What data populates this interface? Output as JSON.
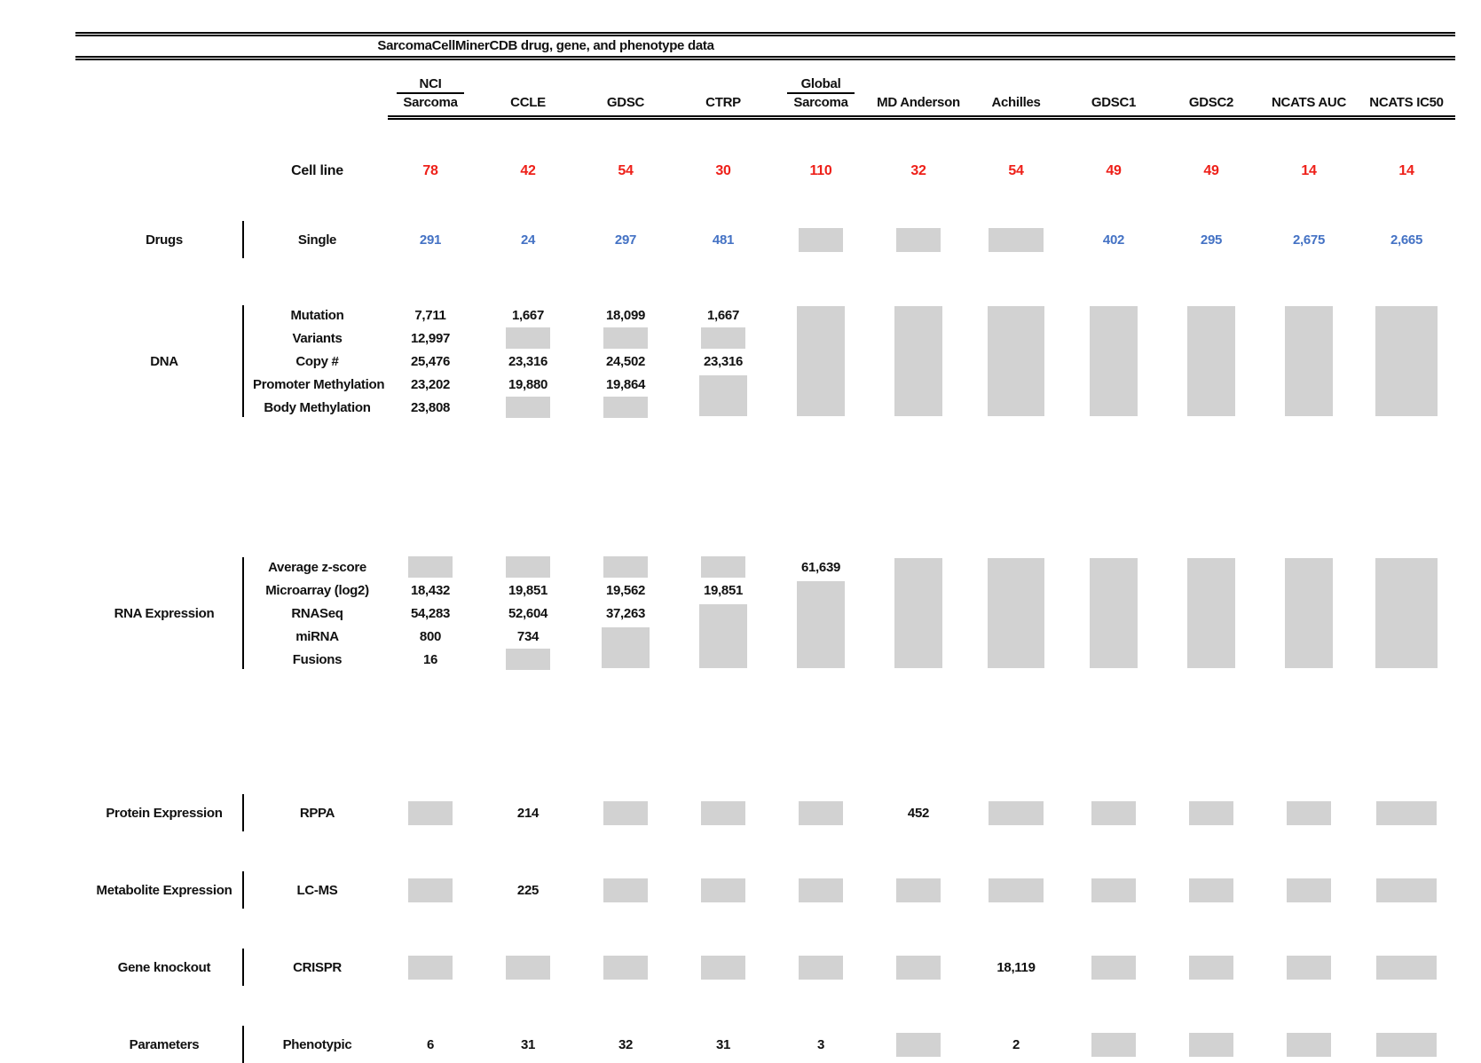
{
  "title": "SarcomaCellMinerCDB drug, gene, and phenotype data",
  "colors": {
    "missing_block": "#d2d2d2",
    "cell_line_count": "#ee2019",
    "drug_count": "#4472c4",
    "value_text": "#111111"
  },
  "columns": [
    {
      "top": "NCI",
      "label": "Sarcoma"
    },
    {
      "label": "CCLE"
    },
    {
      "label": "GDSC"
    },
    {
      "label": "CTRP"
    },
    {
      "top": "Global",
      "label": "Sarcoma"
    },
    {
      "label": "MD Anderson"
    },
    {
      "label": "Achilles"
    },
    {
      "label": "GDSC1"
    },
    {
      "label": "GDSC2"
    },
    {
      "label": "NCATS AUC"
    },
    {
      "label": "NCATS IC50"
    }
  ],
  "cell_line": {
    "label": "Cell line",
    "values": [
      "78",
      "42",
      "54",
      "30",
      "110",
      "32",
      "54",
      "49",
      "49",
      "14",
      "14"
    ]
  },
  "sections": [
    {
      "id": "drugs",
      "category": "Drugs",
      "value_color": "#4472c4",
      "rows": [
        {
          "label": "Single",
          "values": [
            "291",
            "24",
            "297",
            "481",
            "",
            "",
            "",
            "402",
            "295",
            "2,675",
            "2,665"
          ]
        }
      ],
      "blocks": [
        {
          "col": 5,
          "row": 1,
          "span": 1
        },
        {
          "col": 6,
          "row": 1,
          "span": 1
        },
        {
          "col": 7,
          "row": 1,
          "span": 1
        }
      ]
    },
    {
      "id": "dna",
      "category": "DNA",
      "rows": [
        {
          "label": "Mutation",
          "values": [
            "7,711",
            "1,667",
            "18,099",
            "1,667",
            "",
            "",
            "",
            "",
            "",
            "",
            ""
          ]
        },
        {
          "label": "Variants",
          "values": [
            "12,997",
            "",
            "",
            "",
            "",
            "",
            "",
            "",
            "",
            "",
            ""
          ]
        },
        {
          "label": "Copy #",
          "values": [
            "25,476",
            "23,316",
            "24,502",
            "23,316",
            "",
            "",
            "",
            "",
            "",
            "",
            ""
          ]
        },
        {
          "label": "Promoter Methylation",
          "values": [
            "23,202",
            "19,880",
            "19,864",
            "",
            "",
            "",
            "",
            "",
            "",
            "",
            ""
          ]
        },
        {
          "label": "Body Methylation",
          "values": [
            "23,808",
            "",
            "",
            "",
            "",
            "",
            "",
            "",
            "",
            "",
            ""
          ]
        }
      ],
      "blocks": [
        {
          "col": 2,
          "row": 2,
          "span": 1
        },
        {
          "col": 3,
          "row": 2,
          "span": 1
        },
        {
          "col": 4,
          "row": 2,
          "span": 1
        },
        {
          "col": 4,
          "row": 4,
          "span": 2
        },
        {
          "col": 2,
          "row": 5,
          "span": 1
        },
        {
          "col": 3,
          "row": 5,
          "span": 1
        },
        {
          "col": 5,
          "row": 1,
          "span": 5
        },
        {
          "col": 6,
          "row": 1,
          "span": 5
        },
        {
          "col": 7,
          "row": 1,
          "span": 5
        },
        {
          "col": 8,
          "row": 1,
          "span": 5
        },
        {
          "col": 9,
          "row": 1,
          "span": 5
        },
        {
          "col": 10,
          "row": 1,
          "span": 5
        },
        {
          "col": 11,
          "row": 1,
          "span": 5
        }
      ]
    },
    {
      "id": "rna",
      "category": "RNA Expression",
      "rows": [
        {
          "label": "Average z-score",
          "values": [
            "",
            "",
            "",
            "",
            "61,639",
            "",
            "",
            "",
            "",
            "",
            ""
          ]
        },
        {
          "label": "Microarray (log2)",
          "values": [
            "18,432",
            "19,851",
            "19,562",
            "19,851",
            "",
            "",
            "",
            "",
            "",
            "",
            ""
          ]
        },
        {
          "label": "RNASeq",
          "values": [
            "54,283",
            "52,604",
            "37,263",
            "",
            "",
            "",
            "",
            "",
            "",
            "",
            ""
          ]
        },
        {
          "label": "miRNA",
          "values": [
            "800",
            "734",
            "",
            "",
            "",
            "",
            "",
            "",
            "",
            "",
            ""
          ]
        },
        {
          "label": "Fusions",
          "values": [
            "16",
            "",
            "",
            "",
            "",
            "",
            "",
            "",
            "",
            "",
            ""
          ]
        }
      ],
      "blocks": [
        {
          "col": 1,
          "row": 1,
          "span": 1
        },
        {
          "col": 2,
          "row": 1,
          "span": 1
        },
        {
          "col": 3,
          "row": 1,
          "span": 1
        },
        {
          "col": 4,
          "row": 1,
          "span": 1
        },
        {
          "col": 5,
          "row": 2,
          "span": 4
        },
        {
          "col": 4,
          "row": 3,
          "span": 3
        },
        {
          "col": 3,
          "row": 4,
          "span": 2
        },
        {
          "col": 2,
          "row": 5,
          "span": 1
        },
        {
          "col": 6,
          "row": 1,
          "span": 5
        },
        {
          "col": 7,
          "row": 1,
          "span": 5
        },
        {
          "col": 8,
          "row": 1,
          "span": 5
        },
        {
          "col": 9,
          "row": 1,
          "span": 5
        },
        {
          "col": 10,
          "row": 1,
          "span": 5
        },
        {
          "col": 11,
          "row": 1,
          "span": 5
        }
      ]
    },
    {
      "id": "protein",
      "category": "Protein Expression",
      "rows": [
        {
          "label": "RPPA",
          "values": [
            "",
            "214",
            "",
            "",
            "",
            "452",
            "",
            "",
            "",
            "",
            ""
          ]
        }
      ],
      "blocks": [
        {
          "col": 1,
          "row": 1,
          "span": 1
        },
        {
          "col": 3,
          "row": 1,
          "span": 1
        },
        {
          "col": 4,
          "row": 1,
          "span": 1
        },
        {
          "col": 5,
          "row": 1,
          "span": 1
        },
        {
          "col": 7,
          "row": 1,
          "span": 1
        },
        {
          "col": 8,
          "row": 1,
          "span": 1
        },
        {
          "col": 9,
          "row": 1,
          "span": 1
        },
        {
          "col": 10,
          "row": 1,
          "span": 1
        },
        {
          "col": 11,
          "row": 1,
          "span": 1
        }
      ]
    },
    {
      "id": "metabolite",
      "category": "Metabolite Expression",
      "rows": [
        {
          "label": "LC-MS",
          "values": [
            "",
            "225",
            "",
            "",
            "",
            "",
            "",
            "",
            "",
            "",
            ""
          ]
        }
      ],
      "blocks": [
        {
          "col": 1,
          "row": 1,
          "span": 1
        },
        {
          "col": 3,
          "row": 1,
          "span": 1
        },
        {
          "col": 4,
          "row": 1,
          "span": 1
        },
        {
          "col": 5,
          "row": 1,
          "span": 1
        },
        {
          "col": 6,
          "row": 1,
          "span": 1
        },
        {
          "col": 7,
          "row": 1,
          "span": 1
        },
        {
          "col": 8,
          "row": 1,
          "span": 1
        },
        {
          "col": 9,
          "row": 1,
          "span": 1
        },
        {
          "col": 10,
          "row": 1,
          "span": 1
        },
        {
          "col": 11,
          "row": 1,
          "span": 1
        }
      ]
    },
    {
      "id": "knockout",
      "category": "Gene knockout",
      "rows": [
        {
          "label": "CRISPR",
          "values": [
            "",
            "",
            "",
            "",
            "",
            "",
            "18,119",
            "",
            "",
            "",
            ""
          ]
        }
      ],
      "blocks": [
        {
          "col": 1,
          "row": 1,
          "span": 1
        },
        {
          "col": 2,
          "row": 1,
          "span": 1
        },
        {
          "col": 3,
          "row": 1,
          "span": 1
        },
        {
          "col": 4,
          "row": 1,
          "span": 1
        },
        {
          "col": 5,
          "row": 1,
          "span": 1
        },
        {
          "col": 6,
          "row": 1,
          "span": 1
        },
        {
          "col": 8,
          "row": 1,
          "span": 1
        },
        {
          "col": 9,
          "row": 1,
          "span": 1
        },
        {
          "col": 10,
          "row": 1,
          "span": 1
        },
        {
          "col": 11,
          "row": 1,
          "span": 1
        }
      ]
    },
    {
      "id": "parameters",
      "category": "Parameters",
      "rows": [
        {
          "label": "Phenotypic",
          "values": [
            "6",
            "31",
            "32",
            "31",
            "3",
            "",
            "2",
            "",
            "",
            "",
            ""
          ]
        }
      ],
      "blocks": [
        {
          "col": 6,
          "row": 1,
          "span": 1
        },
        {
          "col": 8,
          "row": 1,
          "span": 1
        },
        {
          "col": 9,
          "row": 1,
          "span": 1
        },
        {
          "col": 10,
          "row": 1,
          "span": 1
        },
        {
          "col": 11,
          "row": 1,
          "span": 1
        }
      ]
    }
  ],
  "chart_data": {
    "type": "table",
    "title": "SarcomaCellMinerCDB drug, gene, and phenotype data",
    "columns": [
      "NCI Sarcoma",
      "CCLE",
      "GDSC",
      "CTRP",
      "Global Sarcoma",
      "MD Anderson",
      "Achilles",
      "GDSC1",
      "GDSC2",
      "NCATS AUC",
      "NCATS IC50"
    ],
    "cell_line_counts": [
      78,
      42,
      54,
      30,
      110,
      32,
      54,
      49,
      49,
      14,
      14
    ],
    "rows": [
      {
        "category": "Drugs",
        "measure": "Single",
        "values": [
          291,
          24,
          297,
          481,
          null,
          null,
          null,
          402,
          295,
          2675,
          2665
        ]
      },
      {
        "category": "DNA",
        "measure": "Mutation",
        "values": [
          7711,
          1667,
          18099,
          1667,
          null,
          null,
          null,
          null,
          null,
          null,
          null
        ]
      },
      {
        "category": "DNA",
        "measure": "Variants",
        "values": [
          12997,
          null,
          null,
          null,
          null,
          null,
          null,
          null,
          null,
          null,
          null
        ]
      },
      {
        "category": "DNA",
        "measure": "Copy #",
        "values": [
          25476,
          23316,
          24502,
          23316,
          null,
          null,
          null,
          null,
          null,
          null,
          null
        ]
      },
      {
        "category": "DNA",
        "measure": "Promoter Methylation",
        "values": [
          23202,
          19880,
          19864,
          null,
          null,
          null,
          null,
          null,
          null,
          null,
          null
        ]
      },
      {
        "category": "DNA",
        "measure": "Body Methylation",
        "values": [
          23808,
          null,
          null,
          null,
          null,
          null,
          null,
          null,
          null,
          null,
          null
        ]
      },
      {
        "category": "RNA Expression",
        "measure": "Average z-score",
        "values": [
          null,
          null,
          null,
          null,
          61639,
          null,
          null,
          null,
          null,
          null,
          null
        ]
      },
      {
        "category": "RNA Expression",
        "measure": "Microarray (log2)",
        "values": [
          18432,
          19851,
          19562,
          19851,
          null,
          null,
          null,
          null,
          null,
          null,
          null
        ]
      },
      {
        "category": "RNA Expression",
        "measure": "RNASeq",
        "values": [
          54283,
          52604,
          37263,
          null,
          null,
          null,
          null,
          null,
          null,
          null,
          null
        ]
      },
      {
        "category": "RNA Expression",
        "measure": "miRNA",
        "values": [
          800,
          734,
          null,
          null,
          null,
          null,
          null,
          null,
          null,
          null,
          null
        ]
      },
      {
        "category": "RNA Expression",
        "measure": "Fusions",
        "values": [
          16,
          null,
          null,
          null,
          null,
          null,
          null,
          null,
          null,
          null,
          null
        ]
      },
      {
        "category": "Protein Expression",
        "measure": "RPPA",
        "values": [
          null,
          214,
          null,
          null,
          null,
          452,
          null,
          null,
          null,
          null,
          null
        ]
      },
      {
        "category": "Metabolite Expression",
        "measure": "LC-MS",
        "values": [
          null,
          225,
          null,
          null,
          null,
          null,
          null,
          null,
          null,
          null,
          null
        ]
      },
      {
        "category": "Gene knockout",
        "measure": "CRISPR",
        "values": [
          null,
          null,
          null,
          null,
          null,
          null,
          18119,
          null,
          null,
          null,
          null
        ]
      },
      {
        "category": "Parameters",
        "measure": "Phenotypic",
        "values": [
          6,
          31,
          32,
          31,
          3,
          null,
          2,
          null,
          null,
          null,
          null
        ]
      }
    ],
    "missing_marker": "gray block",
    "layout_hints": {
      "grid": false,
      "header_count_color": "red",
      "drug_count_color": "blue"
    }
  }
}
